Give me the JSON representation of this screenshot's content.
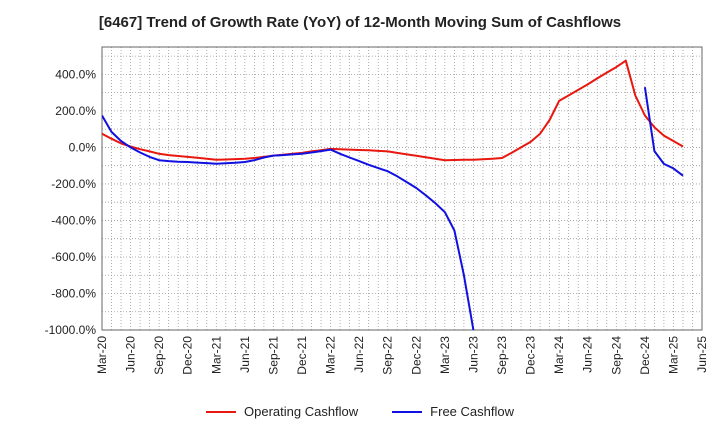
{
  "chart_data": {
    "type": "line",
    "title": "[6467]  Trend of Growth Rate (YoY) of 12-Month Moving Sum of Cashflows",
    "xlabel": "",
    "ylabel": "",
    "x_ticks": [
      "Mar-20",
      "Jun-20",
      "Sep-20",
      "Dec-20",
      "Mar-21",
      "Jun-21",
      "Sep-21",
      "Dec-21",
      "Mar-22",
      "Jun-22",
      "Sep-22",
      "Dec-22",
      "Mar-23",
      "Jun-23",
      "Sep-23",
      "Dec-23",
      "Mar-24",
      "Jun-24",
      "Sep-24",
      "Dec-24",
      "Mar-25",
      "Jun-25"
    ],
    "y_ticks": [
      "400.0%",
      "200.0%",
      "0.0%",
      "-200.0%",
      "-400.0%",
      "-600.0%",
      "-800.0%",
      "-1000.0%"
    ],
    "y_tick_values": [
      400,
      200,
      0,
      -200,
      -400,
      -600,
      -800,
      -1000
    ],
    "ylim": [
      -1000,
      550
    ],
    "grid": true,
    "legend_position": "bottom",
    "series": [
      {
        "name": "Operating Cashflow",
        "color": "#e8170f",
        "points": [
          [
            "Mar-20",
            75
          ],
          [
            "Apr-20",
            48
          ],
          [
            "May-20",
            22
          ],
          [
            "Jun-20",
            5
          ],
          [
            "Jul-20",
            -10
          ],
          [
            "Aug-20",
            -22
          ],
          [
            "Sep-20",
            -35
          ],
          [
            "Oct-20",
            -42
          ],
          [
            "Nov-20",
            -47
          ],
          [
            "Dec-20",
            -52
          ],
          [
            "Jan-21",
            -57
          ],
          [
            "Feb-21",
            -62
          ],
          [
            "Mar-21",
            -67
          ],
          [
            "Apr-21",
            -66
          ],
          [
            "May-21",
            -64
          ],
          [
            "Jun-21",
            -62
          ],
          [
            "Jul-21",
            -58
          ],
          [
            "Aug-21",
            -52
          ],
          [
            "Sep-21",
            -45
          ],
          [
            "Oct-21",
            -40
          ],
          [
            "Nov-21",
            -35
          ],
          [
            "Dec-21",
            -30
          ],
          [
            "Jan-22",
            -22
          ],
          [
            "Feb-22",
            -15
          ],
          [
            "Mar-22",
            -8
          ],
          [
            "Apr-22",
            -10
          ],
          [
            "May-22",
            -12
          ],
          [
            "Jun-22",
            -14
          ],
          [
            "Jul-22",
            -16
          ],
          [
            "Aug-22",
            -19
          ],
          [
            "Sep-22",
            -22
          ],
          [
            "Oct-22",
            -30
          ],
          [
            "Nov-22",
            -38
          ],
          [
            "Dec-22",
            -46
          ],
          [
            "Jan-23",
            -54
          ],
          [
            "Feb-23",
            -62
          ],
          [
            "Mar-23",
            -70
          ],
          [
            "Apr-23",
            -69
          ],
          [
            "May-23",
            -68
          ],
          [
            "Jun-23",
            -67
          ],
          [
            "Jul-23",
            -65
          ],
          [
            "Aug-23",
            -62
          ],
          [
            "Sep-23",
            -58
          ],
          [
            "Oct-23",
            -30
          ],
          [
            "Nov-23",
            0
          ],
          [
            "Dec-23",
            30
          ],
          [
            "Jan-24",
            75
          ],
          [
            "Feb-24",
            150
          ],
          [
            "Mar-24",
            255
          ],
          [
            "Apr-24",
            285
          ],
          [
            "May-24",
            315
          ],
          [
            "Jun-24",
            345
          ],
          [
            "Jul-24",
            378
          ],
          [
            "Aug-24",
            410
          ],
          [
            "Sep-24",
            440
          ],
          [
            "Oct-24",
            475
          ],
          [
            "Nov-24",
            285
          ],
          [
            "Dec-24",
            175
          ],
          [
            "Jan-25",
            110
          ],
          [
            "Feb-25",
            65
          ],
          [
            "Mar-25",
            35
          ],
          [
            "Apr-25",
            5
          ]
        ]
      },
      {
        "name": "Free Cashflow",
        "color": "#1010e0",
        "segments": [
          [
            [
              "Mar-20",
              175
            ],
            [
              "Apr-20",
              85
            ],
            [
              "May-20",
              35
            ],
            [
              "Jun-20",
              0
            ],
            [
              "Jul-20",
              -28
            ],
            [
              "Aug-20",
              -52
            ],
            [
              "Sep-20",
              -70
            ],
            [
              "Oct-20",
              -75
            ],
            [
              "Nov-20",
              -78
            ],
            [
              "Dec-20",
              -80
            ],
            [
              "Jan-21",
              -83
            ],
            [
              "Feb-21",
              -86
            ],
            [
              "Mar-21",
              -89
            ],
            [
              "Apr-21",
              -87
            ],
            [
              "May-21",
              -84
            ],
            [
              "Jun-21",
              -80
            ],
            [
              "Jul-21",
              -70
            ],
            [
              "Aug-21",
              -55
            ],
            [
              "Sep-21",
              -45
            ],
            [
              "Oct-21",
              -42
            ],
            [
              "Nov-21",
              -38
            ],
            [
              "Dec-21",
              -35
            ],
            [
              "Jan-22",
              -28
            ],
            [
              "Feb-22",
              -20
            ],
            [
              "Mar-22",
              -12
            ],
            [
              "Apr-22",
              -35
            ],
            [
              "May-22",
              -55
            ],
            [
              "Jun-22",
              -75
            ],
            [
              "Jul-22",
              -95
            ],
            [
              "Aug-22",
              -113
            ],
            [
              "Sep-22",
              -130
            ],
            [
              "Oct-22",
              -158
            ],
            [
              "Nov-22",
              -190
            ],
            [
              "Dec-22",
              -222
            ],
            [
              "Jan-23",
              -262
            ],
            [
              "Feb-23",
              -305
            ],
            [
              "Mar-23",
              -355
            ],
            [
              "Apr-23",
              -455
            ],
            [
              "May-23",
              -700
            ],
            [
              "Jun-23",
              -1000
            ]
          ],
          [
            [
              "Dec-24",
              330
            ],
            [
              "Jan-25",
              -20
            ],
            [
              "Feb-25",
              -90
            ],
            [
              "Mar-25",
              -115
            ],
            [
              "Apr-25",
              -155
            ]
          ]
        ]
      }
    ]
  }
}
